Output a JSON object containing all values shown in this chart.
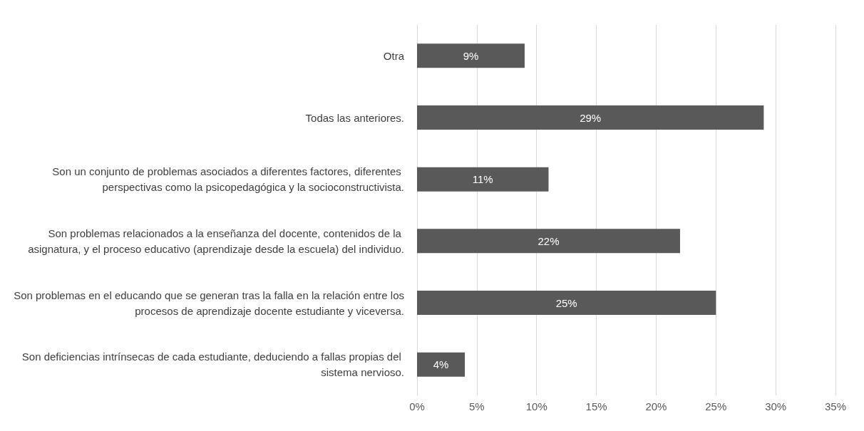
{
  "chart_data": {
    "type": "bar",
    "orientation": "horizontal",
    "categories": [
      "Otra",
      "Todas las anteriores.",
      "Son un conjunto de problemas asociados a diferentes factores, diferentes perspectivas como la psicopedagógica y la socioconstructivista.",
      "Son problemas relacionados a la enseñanza del docente, contenidos de la asignatura, y el proceso educativo (aprendizaje desde la escuela) del individuo.",
      "Son problemas en el educando que se generan tras la falla en la relación entre los procesos de aprendizaje docente estudiante y viceversa.",
      "Son deficiencias intrínsecas de cada estudiante, deduciendo a fallas propias del sistema nervioso."
    ],
    "values": [
      9,
      29,
      11,
      22,
      25,
      4
    ],
    "value_labels": [
      "9%",
      "29%",
      "11%",
      "22%",
      "25%",
      "4%"
    ],
    "color": "#595959",
    "xlim": [
      0,
      35
    ],
    "xticks": [
      {
        "value": 0,
        "label": "0%"
      },
      {
        "value": 5,
        "label": "5%"
      },
      {
        "value": 10,
        "label": "10%"
      },
      {
        "value": 15,
        "label": "15%"
      },
      {
        "value": 20,
        "label": "20%"
      },
      {
        "value": 25,
        "label": "25%"
      },
      {
        "value": 30,
        "label": "30%"
      },
      {
        "value": 35,
        "label": "35%"
      }
    ],
    "grid": "x"
  }
}
